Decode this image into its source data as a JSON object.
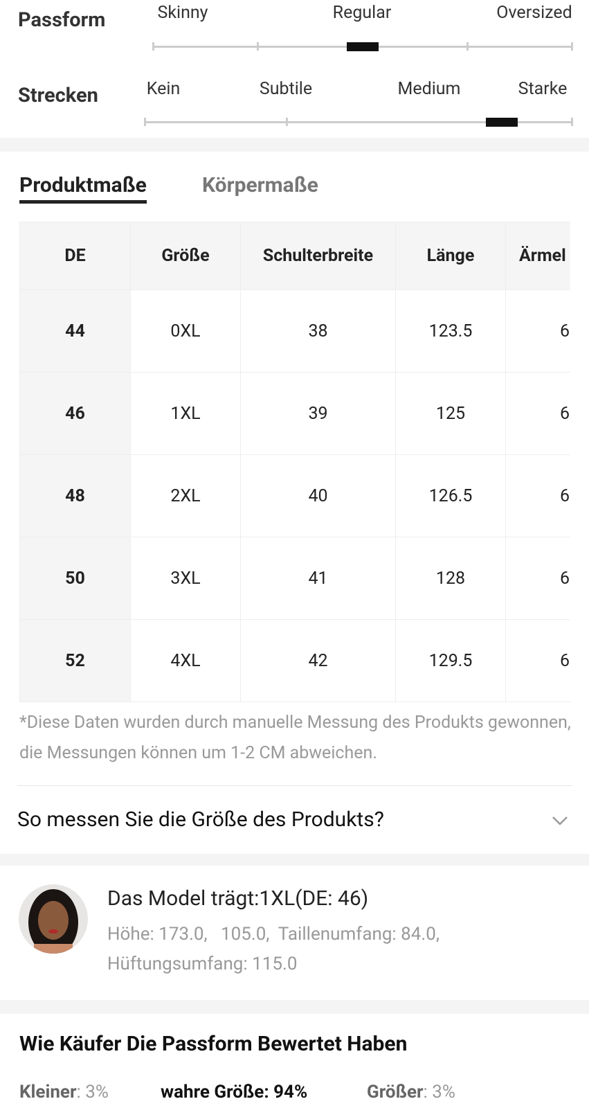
{
  "fit": {
    "passform": {
      "label": "Passform",
      "options": [
        "Skinny",
        "Regular",
        "Oversized"
      ],
      "selected": 1
    },
    "strecken": {
      "label": "Strecken",
      "options": [
        "Kein",
        "Subtile",
        "Medium",
        "Starke"
      ],
      "selected": 2
    }
  },
  "tabs": [
    "Produktmaße",
    "Körpermaße"
  ],
  "table": {
    "headers": [
      "DE",
      "Größe",
      "Schulterbreite",
      "Länge",
      "Ärmel"
    ],
    "rows": [
      [
        "44",
        "0XL",
        "38",
        "123.5",
        "6"
      ],
      [
        "46",
        "1XL",
        "39",
        "125",
        "6"
      ],
      [
        "48",
        "2XL",
        "40",
        "126.5",
        "6"
      ],
      [
        "50",
        "3XL",
        "41",
        "128",
        "6"
      ],
      [
        "52",
        "4XL",
        "42",
        "129.5",
        "6"
      ]
    ]
  },
  "note": "*Diese Daten wurden durch manuelle Messung des Produkts gewonnen, die Messungen können um 1-2 CM abweichen.",
  "accordion": "So messen Sie die Größe des Produkts?",
  "model": {
    "title": "Das Model trägt:1XL(DE: 46)",
    "line1": "Höhe: 173.0,   105.0,  Taillenumfang: 84.0,",
    "line2": "Hüftungsumfang: 115.0"
  },
  "rating": {
    "heading": "Wie Käufer Die Passform Bewertet Haben",
    "items": [
      {
        "label": "Kleiner",
        "value": ": 3%"
      },
      {
        "label": "wahre Größe: 94%",
        "value": ""
      },
      {
        "label": "Größer",
        "value": ": 3%"
      }
    ]
  }
}
